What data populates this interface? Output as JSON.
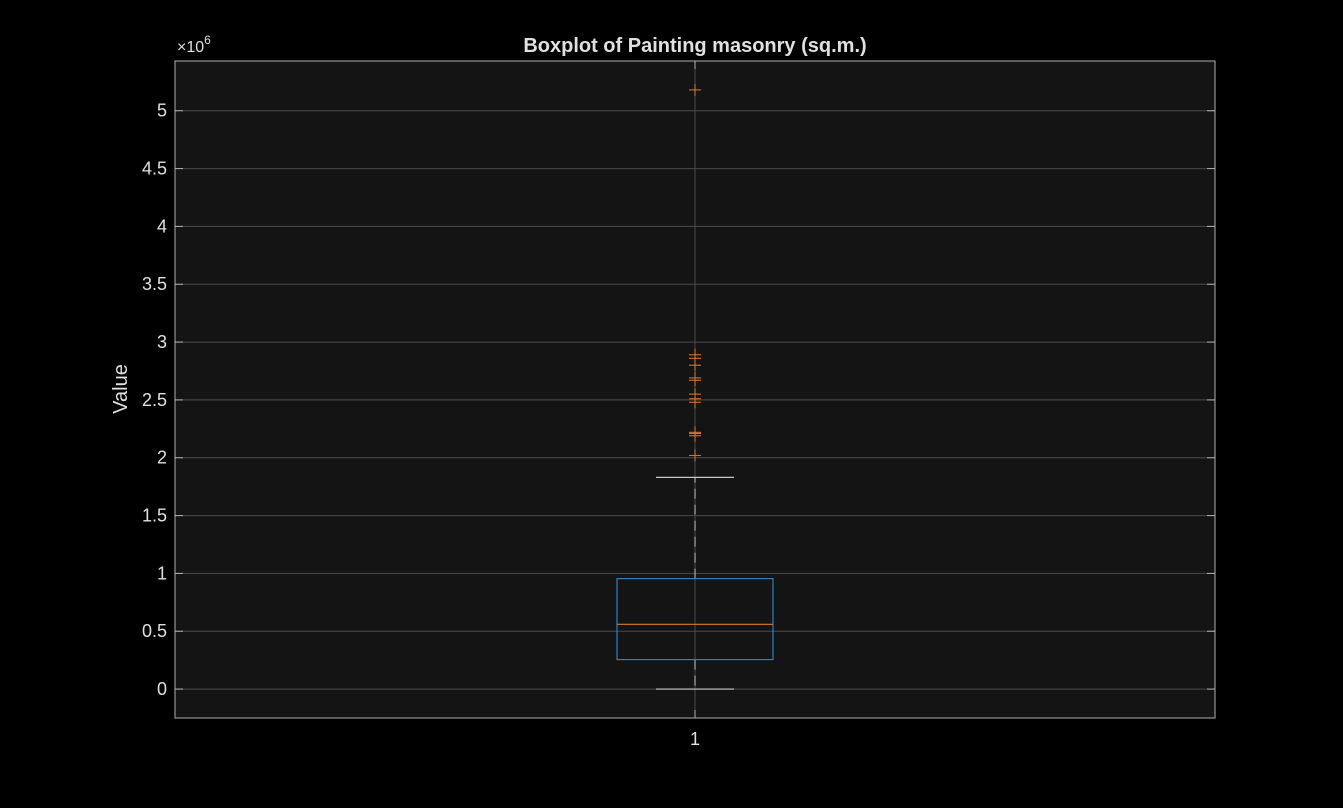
{
  "chart_data": {
    "type": "boxplot",
    "title": "Boxplot of Painting masonry (sq.m.)",
    "ylabel": "Value",
    "xlabel": "",
    "exponent_label": "×10",
    "exponent_power": "6",
    "scale": 1000000,
    "categories": [
      "1"
    ],
    "ylim": [
      -250000,
      5430000
    ],
    "yticks": [
      0,
      500000,
      1000000,
      1500000,
      2000000,
      2500000,
      3000000,
      3500000,
      4000000,
      4500000,
      5000000
    ],
    "ytick_labels": [
      "0",
      "0.5",
      "1",
      "1.5",
      "2",
      "2.5",
      "3",
      "3.5",
      "4",
      "4.5",
      "5"
    ],
    "grid": true,
    "box": {
      "whisker_low": 0,
      "q1": 255000,
      "median": 560000,
      "q3": 955000,
      "whisker_high": 1830000
    },
    "outliers": [
      2020000,
      2190000,
      2210000,
      2220000,
      2480000,
      2510000,
      2550000,
      2670000,
      2690000,
      2800000,
      2860000,
      2890000,
      5180000
    ],
    "colors": {
      "background": "#000000",
      "axes_bg": "#141414",
      "axes_edge": "#b0b0b0",
      "grid": "#4a4a4a",
      "text": "#e0e0e0",
      "box": "#2f7fc1",
      "median": "#d9782d",
      "whisker": "#c8c8c8",
      "outlier": "#e07a2e"
    }
  }
}
